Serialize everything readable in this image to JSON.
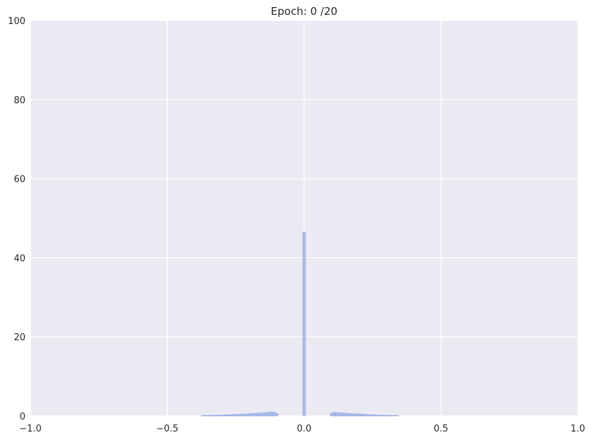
{
  "chart_data": {
    "type": "bar",
    "title": "Epoch: 0 /20",
    "xlabel": "",
    "ylabel": "",
    "xlim": [
      -1.0,
      1.0
    ],
    "ylim": [
      0,
      100
    ],
    "x_ticks": [
      "−1.0",
      "−0.5",
      "0.0",
      "0.5",
      "1.0"
    ],
    "x_tick_values": [
      -1.0,
      -0.5,
      0.0,
      0.5,
      1.0
    ],
    "y_ticks": [
      "0",
      "20",
      "40",
      "60",
      "80",
      "100"
    ],
    "y_tick_values": [
      0,
      20,
      40,
      60,
      80,
      100
    ],
    "grid": true,
    "bin_width": 0.01,
    "bins": [
      {
        "x": -0.37,
        "value": 0.1
      },
      {
        "x": -0.36,
        "value": 0.1
      },
      {
        "x": -0.35,
        "value": 0.1
      },
      {
        "x": -0.34,
        "value": 0.15
      },
      {
        "x": -0.33,
        "value": 0.15
      },
      {
        "x": -0.32,
        "value": 0.15
      },
      {
        "x": -0.31,
        "value": 0.2
      },
      {
        "x": -0.3,
        "value": 0.2
      },
      {
        "x": -0.29,
        "value": 0.25
      },
      {
        "x": -0.28,
        "value": 0.3
      },
      {
        "x": -0.27,
        "value": 0.3
      },
      {
        "x": -0.26,
        "value": 0.35
      },
      {
        "x": -0.25,
        "value": 0.35
      },
      {
        "x": -0.24,
        "value": 0.4
      },
      {
        "x": -0.23,
        "value": 0.45
      },
      {
        "x": -0.22,
        "value": 0.5
      },
      {
        "x": -0.21,
        "value": 0.5
      },
      {
        "x": -0.2,
        "value": 0.55
      },
      {
        "x": -0.19,
        "value": 0.6
      },
      {
        "x": -0.18,
        "value": 0.65
      },
      {
        "x": -0.17,
        "value": 0.7
      },
      {
        "x": -0.16,
        "value": 0.75
      },
      {
        "x": -0.15,
        "value": 0.8
      },
      {
        "x": -0.14,
        "value": 0.85
      },
      {
        "x": -0.13,
        "value": 0.9
      },
      {
        "x": -0.12,
        "value": 1.0
      },
      {
        "x": -0.11,
        "value": 0.9
      },
      {
        "x": -0.1,
        "value": 0.6
      },
      {
        "x": 0.0,
        "value": 46.5
      },
      {
        "x": 0.1,
        "value": 0.6
      },
      {
        "x": 0.11,
        "value": 0.9
      },
      {
        "x": 0.12,
        "value": 0.85
      },
      {
        "x": 0.13,
        "value": 0.8
      },
      {
        "x": 0.14,
        "value": 0.75
      },
      {
        "x": 0.15,
        "value": 0.7
      },
      {
        "x": 0.16,
        "value": 0.65
      },
      {
        "x": 0.17,
        "value": 0.6
      },
      {
        "x": 0.18,
        "value": 0.55
      },
      {
        "x": 0.19,
        "value": 0.5
      },
      {
        "x": 0.2,
        "value": 0.5
      },
      {
        "x": 0.21,
        "value": 0.45
      },
      {
        "x": 0.22,
        "value": 0.4
      },
      {
        "x": 0.23,
        "value": 0.35
      },
      {
        "x": 0.24,
        "value": 0.3
      },
      {
        "x": 0.25,
        "value": 0.3
      },
      {
        "x": 0.26,
        "value": 0.25
      },
      {
        "x": 0.27,
        "value": 0.2
      },
      {
        "x": 0.28,
        "value": 0.2
      },
      {
        "x": 0.29,
        "value": 0.15
      },
      {
        "x": 0.3,
        "value": 0.15
      },
      {
        "x": 0.31,
        "value": 0.15
      },
      {
        "x": 0.32,
        "value": 0.1
      },
      {
        "x": 0.33,
        "value": 0.1
      },
      {
        "x": 0.34,
        "value": 0.1
      }
    ],
    "colors": {
      "background": "#eaeaf2",
      "grid": "#ffffff",
      "bar_fill": "#b0c0ec",
      "bar_edge": "#8a9fe0",
      "text": "#262626"
    }
  }
}
